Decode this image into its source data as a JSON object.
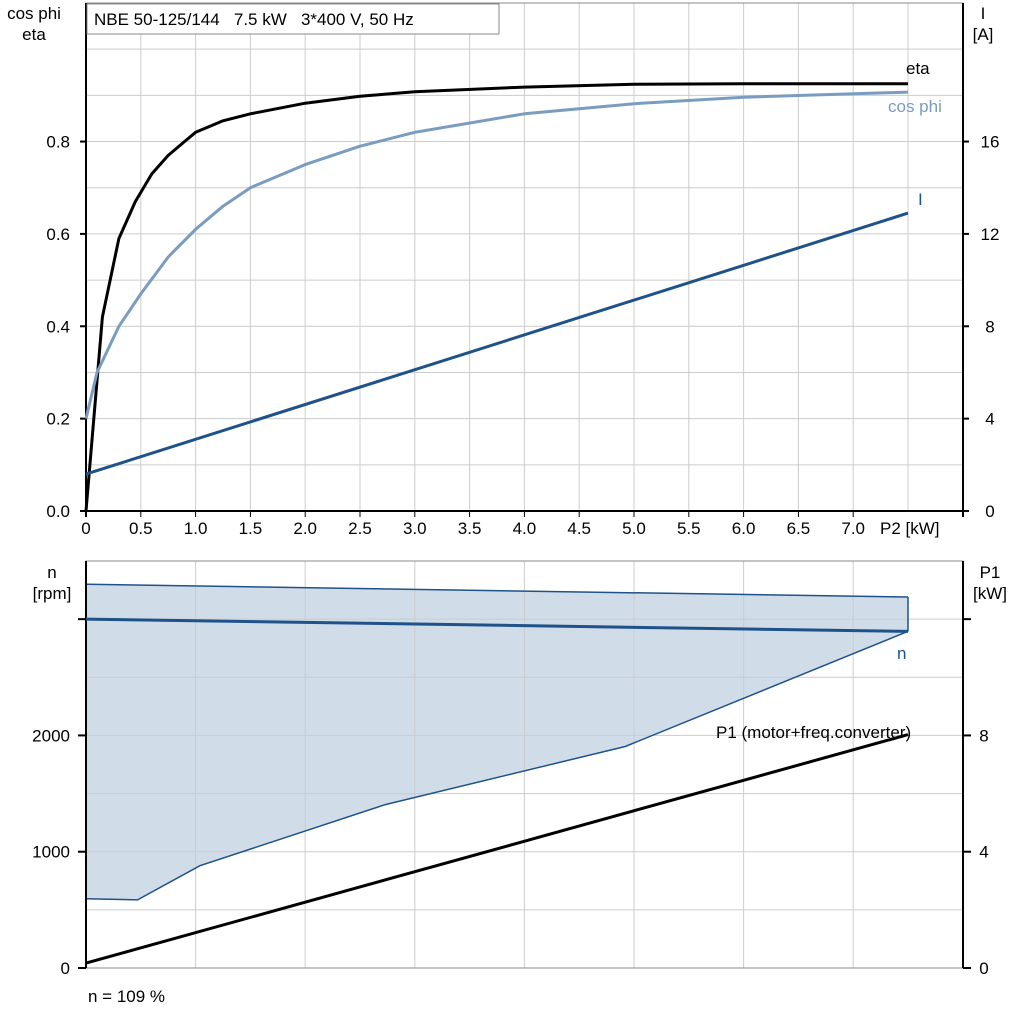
{
  "chart_data": [
    {
      "type": "line",
      "title": "NBE 50-125/144   7.5 kW   3*400 V, 50 Hz",
      "xlabel": "P2 [kW]",
      "ylabel_left": [
        "cos phi",
        "eta"
      ],
      "ylabel_right": [
        "I",
        "[A]"
      ],
      "xlim": [
        0,
        7.5
      ],
      "ylim_left": [
        0,
        1.1
      ],
      "ylim_right": [
        0,
        22
      ],
      "x_ticks": [
        0,
        0.5,
        1.0,
        1.5,
        2.0,
        2.5,
        3.0,
        3.5,
        4.0,
        4.5,
        5.0,
        5.5,
        6.0,
        6.5,
        7.0
      ],
      "x_tick_labels": [
        "0",
        "0.5",
        "1.0",
        "1.5",
        "2.0",
        "2.5",
        "3.0",
        "3.5",
        "4.0",
        "4.5",
        "5.0",
        "5.5",
        "6.0",
        "6.5",
        "7.0"
      ],
      "y_left_ticks": [
        0,
        0.2,
        0.4,
        0.6,
        0.8
      ],
      "y_left_tick_labels": [
        "0.0",
        "0.2",
        "0.4",
        "0.6",
        "0.8"
      ],
      "y_right_ticks": [
        0,
        4,
        8,
        12,
        16
      ],
      "y_right_tick_labels": [
        "0",
        "4",
        "8",
        "12",
        "16"
      ],
      "grid": true,
      "series": [
        {
          "name": "eta",
          "axis": "left",
          "color": "#000000",
          "x": [
            0,
            0.15,
            0.3,
            0.45,
            0.6,
            0.75,
            0.9,
            1.0,
            1.25,
            1.5,
            2.0,
            2.5,
            3.0,
            4.0,
            5.0,
            6.0,
            7.5
          ],
          "y": [
            0.0,
            0.42,
            0.59,
            0.67,
            0.73,
            0.77,
            0.8,
            0.82,
            0.845,
            0.86,
            0.883,
            0.898,
            0.908,
            0.918,
            0.924,
            0.925,
            0.925
          ]
        },
        {
          "name": "cos phi",
          "axis": "left",
          "color": "#7a9cc0",
          "x": [
            0,
            0.1,
            0.3,
            0.5,
            0.75,
            1.0,
            1.25,
            1.5,
            2.0,
            2.5,
            3.0,
            4.0,
            5.0,
            6.0,
            7.5
          ],
          "y": [
            0.2,
            0.3,
            0.4,
            0.47,
            0.55,
            0.61,
            0.66,
            0.7,
            0.75,
            0.79,
            0.82,
            0.86,
            0.882,
            0.896,
            0.907
          ]
        },
        {
          "name": "I",
          "axis": "right",
          "color": "#1f5289",
          "x": [
            0,
            7.5
          ],
          "y": [
            1.6,
            12.9
          ]
        }
      ]
    },
    {
      "type": "line",
      "xlim": [
        0,
        7.5
      ],
      "ylabel_left": [
        "n",
        "[rpm]"
      ],
      "ylabel_right": [
        "P1",
        "[kW]"
      ],
      "ylim_left": [
        0,
        3500
      ],
      "ylim_right": [
        0,
        14
      ],
      "y_left_ticks": [
        0,
        1000,
        2000,
        3000
      ],
      "y_left_tick_labels": [
        "0",
        "1000",
        "2000",
        ""
      ],
      "y_right_ticks": [
        0,
        4,
        8,
        12
      ],
      "y_right_tick_labels": [
        "0",
        "4",
        "8",
        ""
      ],
      "grid": true,
      "footer": "n = 109 %",
      "range_area": {
        "color": "#d0dce8",
        "edge_color": "#1f5289",
        "upper": {
          "x": [
            0,
            7.5
          ],
          "y": [
            3300,
            3190
          ]
        },
        "lower": {
          "x": [
            0,
            0.47,
            1.04,
            2.73,
            4.92,
            7.5
          ],
          "y": [
            595,
            586,
            880,
            1405,
            1905,
            2895
          ]
        }
      },
      "series": [
        {
          "name": "n",
          "axis": "left",
          "color": "#1f5289",
          "x": [
            0,
            7.5
          ],
          "y": [
            3000,
            2895
          ]
        },
        {
          "name": "P1 (motor+freq.converter)",
          "axis": "right",
          "color": "#000000",
          "x": [
            0,
            7.5
          ],
          "y": [
            0.17,
            8.03
          ]
        }
      ]
    }
  ]
}
